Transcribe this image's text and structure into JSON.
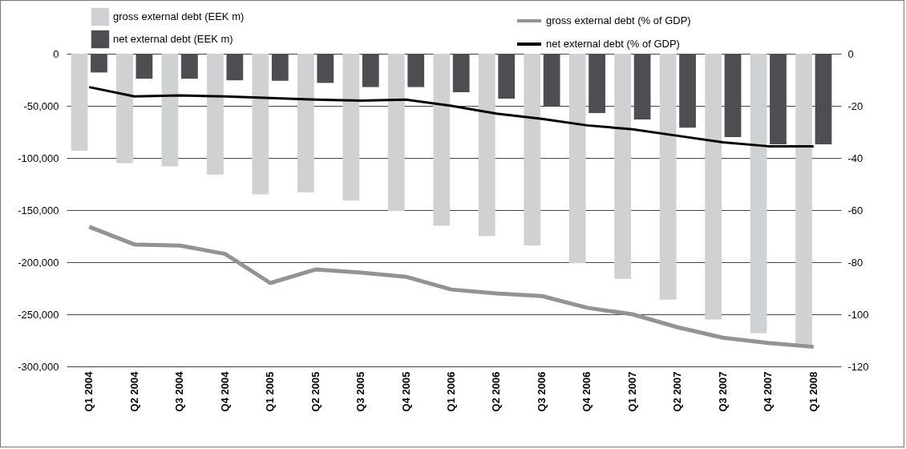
{
  "chart_data": {
    "type": "bar",
    "categories": [
      "Q1 2004",
      "Q2 2004",
      "Q3 2004",
      "Q4 2004",
      "Q1 2005",
      "Q2 2005",
      "Q3 2005",
      "Q4 2005",
      "Q1 2006",
      "Q2 2006",
      "Q3 2006",
      "Q4 2006",
      "Q1 2007",
      "Q2 2007",
      "Q3 2007",
      "Q4 2007",
      "Q1 2008"
    ],
    "series": [
      {
        "name": "gross external debt (EEK m)",
        "color": "#d0d1d3",
        "values": [
          -93000,
          -105000,
          -108000,
          -116000,
          -135000,
          -133000,
          -141000,
          -151000,
          -165000,
          -175000,
          -184000,
          -201000,
          -216000,
          -236000,
          -255000,
          -268000,
          -280000
        ]
      },
      {
        "name": "net external debt (EEK m)",
        "color": "#4d4d52",
        "values": [
          -18000,
          -24000,
          -24000,
          -25500,
          -26000,
          -28000,
          -32000,
          -32000,
          -37000,
          -43000,
          -50000,
          -57000,
          -63000,
          -71000,
          -80000,
          -87000,
          -87000
        ]
      },
      {
        "name": "gross external debt (% of GDP)",
        "type": "line",
        "axis": "y2",
        "color": "#939397",
        "values": [
          -66.4,
          -73.2,
          -73.6,
          -76.8,
          -88,
          -82.8,
          -84,
          -85.6,
          -90.5,
          -92,
          -93,
          -97.5,
          -100,
          -105,
          -109,
          -111,
          -112.5
        ]
      },
      {
        "name": "net external debt (% of GDP)",
        "type": "line",
        "axis": "y2",
        "color": "#000000",
        "values": [
          -12.8,
          -16.4,
          -16,
          -16.4,
          -17,
          -17.6,
          -18,
          -17.6,
          -20,
          -23,
          -25,
          -27.5,
          -29,
          -31.5,
          -34,
          -35.5,
          -35.5
        ]
      }
    ],
    "ylim": [
      -300000,
      0
    ],
    "yticks": [
      {
        "value": -300000,
        "label": "-300,000"
      },
      {
        "value": -250000,
        "label": "-250,000"
      },
      {
        "value": -200000,
        "label": "-200,000"
      },
      {
        "value": -150000,
        "label": "-150,000"
      },
      {
        "value": -100000,
        "label": "-100,000"
      },
      {
        "value": -50000,
        "label": "-50,000"
      },
      0
    ],
    "y2lim": [
      -120,
      0
    ],
    "y2ticks": [
      -120,
      -100,
      -80,
      -60,
      -40,
      -20,
      0
    ],
    "grid": "y",
    "legend": "top"
  }
}
